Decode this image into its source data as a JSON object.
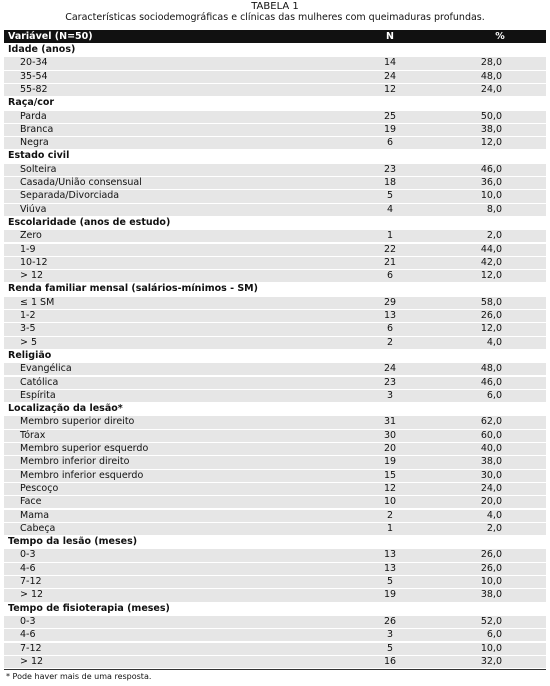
{
  "title": {
    "label": "TABELA 1",
    "caption": "Características sociodemográficas e clínicas das mulheres com queimaduras profundas."
  },
  "table": {
    "header": [
      "Variável (N=50)",
      "N",
      "%"
    ],
    "sections": [
      {
        "title": "Idade (anos)",
        "rows": [
          [
            "20-34",
            "14",
            "28,0"
          ],
          [
            "35-54",
            "24",
            "48,0"
          ],
          [
            "55-82",
            "12",
            "24,0"
          ]
        ]
      },
      {
        "title": "Raça/cor",
        "rows": [
          [
            "Parda",
            "25",
            "50,0"
          ],
          [
            "Branca",
            "19",
            "38,0"
          ],
          [
            "Negra",
            "6",
            "12,0"
          ]
        ]
      },
      {
        "title": "Estado civil",
        "rows": [
          [
            "Solteira",
            "23",
            "46,0"
          ],
          [
            "Casada/União consensual",
            "18",
            "36,0"
          ],
          [
            "Separada/Divorciada",
            "5",
            "10,0"
          ],
          [
            "Viúva",
            "4",
            "8,0"
          ]
        ]
      },
      {
        "title": "Escolaridade (anos de estudo)",
        "rows": [
          [
            "Zero",
            "1",
            "2,0"
          ],
          [
            "1-9",
            "22",
            "44,0"
          ],
          [
            "10-12",
            "21",
            "42,0"
          ],
          [
            "> 12",
            "6",
            "12,0"
          ]
        ]
      },
      {
        "title": "Renda familiar mensal (salários-mínimos - SM)",
        "rows": [
          [
            "≤ 1 SM",
            "29",
            "58,0"
          ],
          [
            "1-2",
            "13",
            "26,0"
          ],
          [
            "3-5",
            "6",
            "12,0"
          ],
          [
            "> 5",
            "2",
            "4,0"
          ]
        ]
      },
      {
        "title": "Religião",
        "rows": [
          [
            "Evangélica",
            "24",
            "48,0"
          ],
          [
            "Católica",
            "23",
            "46,0"
          ],
          [
            "Espírita",
            "3",
            "6,0"
          ]
        ]
      },
      {
        "title": "Localização da lesão*",
        "rows": [
          [
            "Membro superior direito",
            "31",
            "62,0"
          ],
          [
            "Tórax",
            "30",
            "60,0"
          ],
          [
            "Membro superior esquerdo",
            "20",
            "40,0"
          ],
          [
            "Membro inferior direito",
            "19",
            "38,0"
          ],
          [
            "Membro inferior esquerdo",
            "15",
            "30,0"
          ],
          [
            "Pescoço",
            "12",
            "24,0"
          ],
          [
            "Face",
            "10",
            "20,0"
          ],
          [
            "Mama",
            "2",
            "4,0"
          ],
          [
            "Cabeça",
            "1",
            "2,0"
          ]
        ]
      },
      {
        "title": "Tempo da lesão (meses)",
        "rows": [
          [
            "0-3",
            "13",
            "26,0"
          ],
          [
            "4-6",
            "13",
            "26,0"
          ],
          [
            "7-12",
            "5",
            "10,0"
          ],
          [
            "> 12",
            "19",
            "38,0"
          ]
        ]
      },
      {
        "title": "Tempo de fisioterapia (meses)",
        "rows": [
          [
            "0-3",
            "26",
            "52,0"
          ],
          [
            "4-6",
            "3",
            "6,0"
          ],
          [
            "7-12",
            "5",
            "10,0"
          ],
          [
            "> 12",
            "16",
            "32,0"
          ]
        ]
      }
    ]
  },
  "footnote": "* Pode haver mais de uma resposta."
}
